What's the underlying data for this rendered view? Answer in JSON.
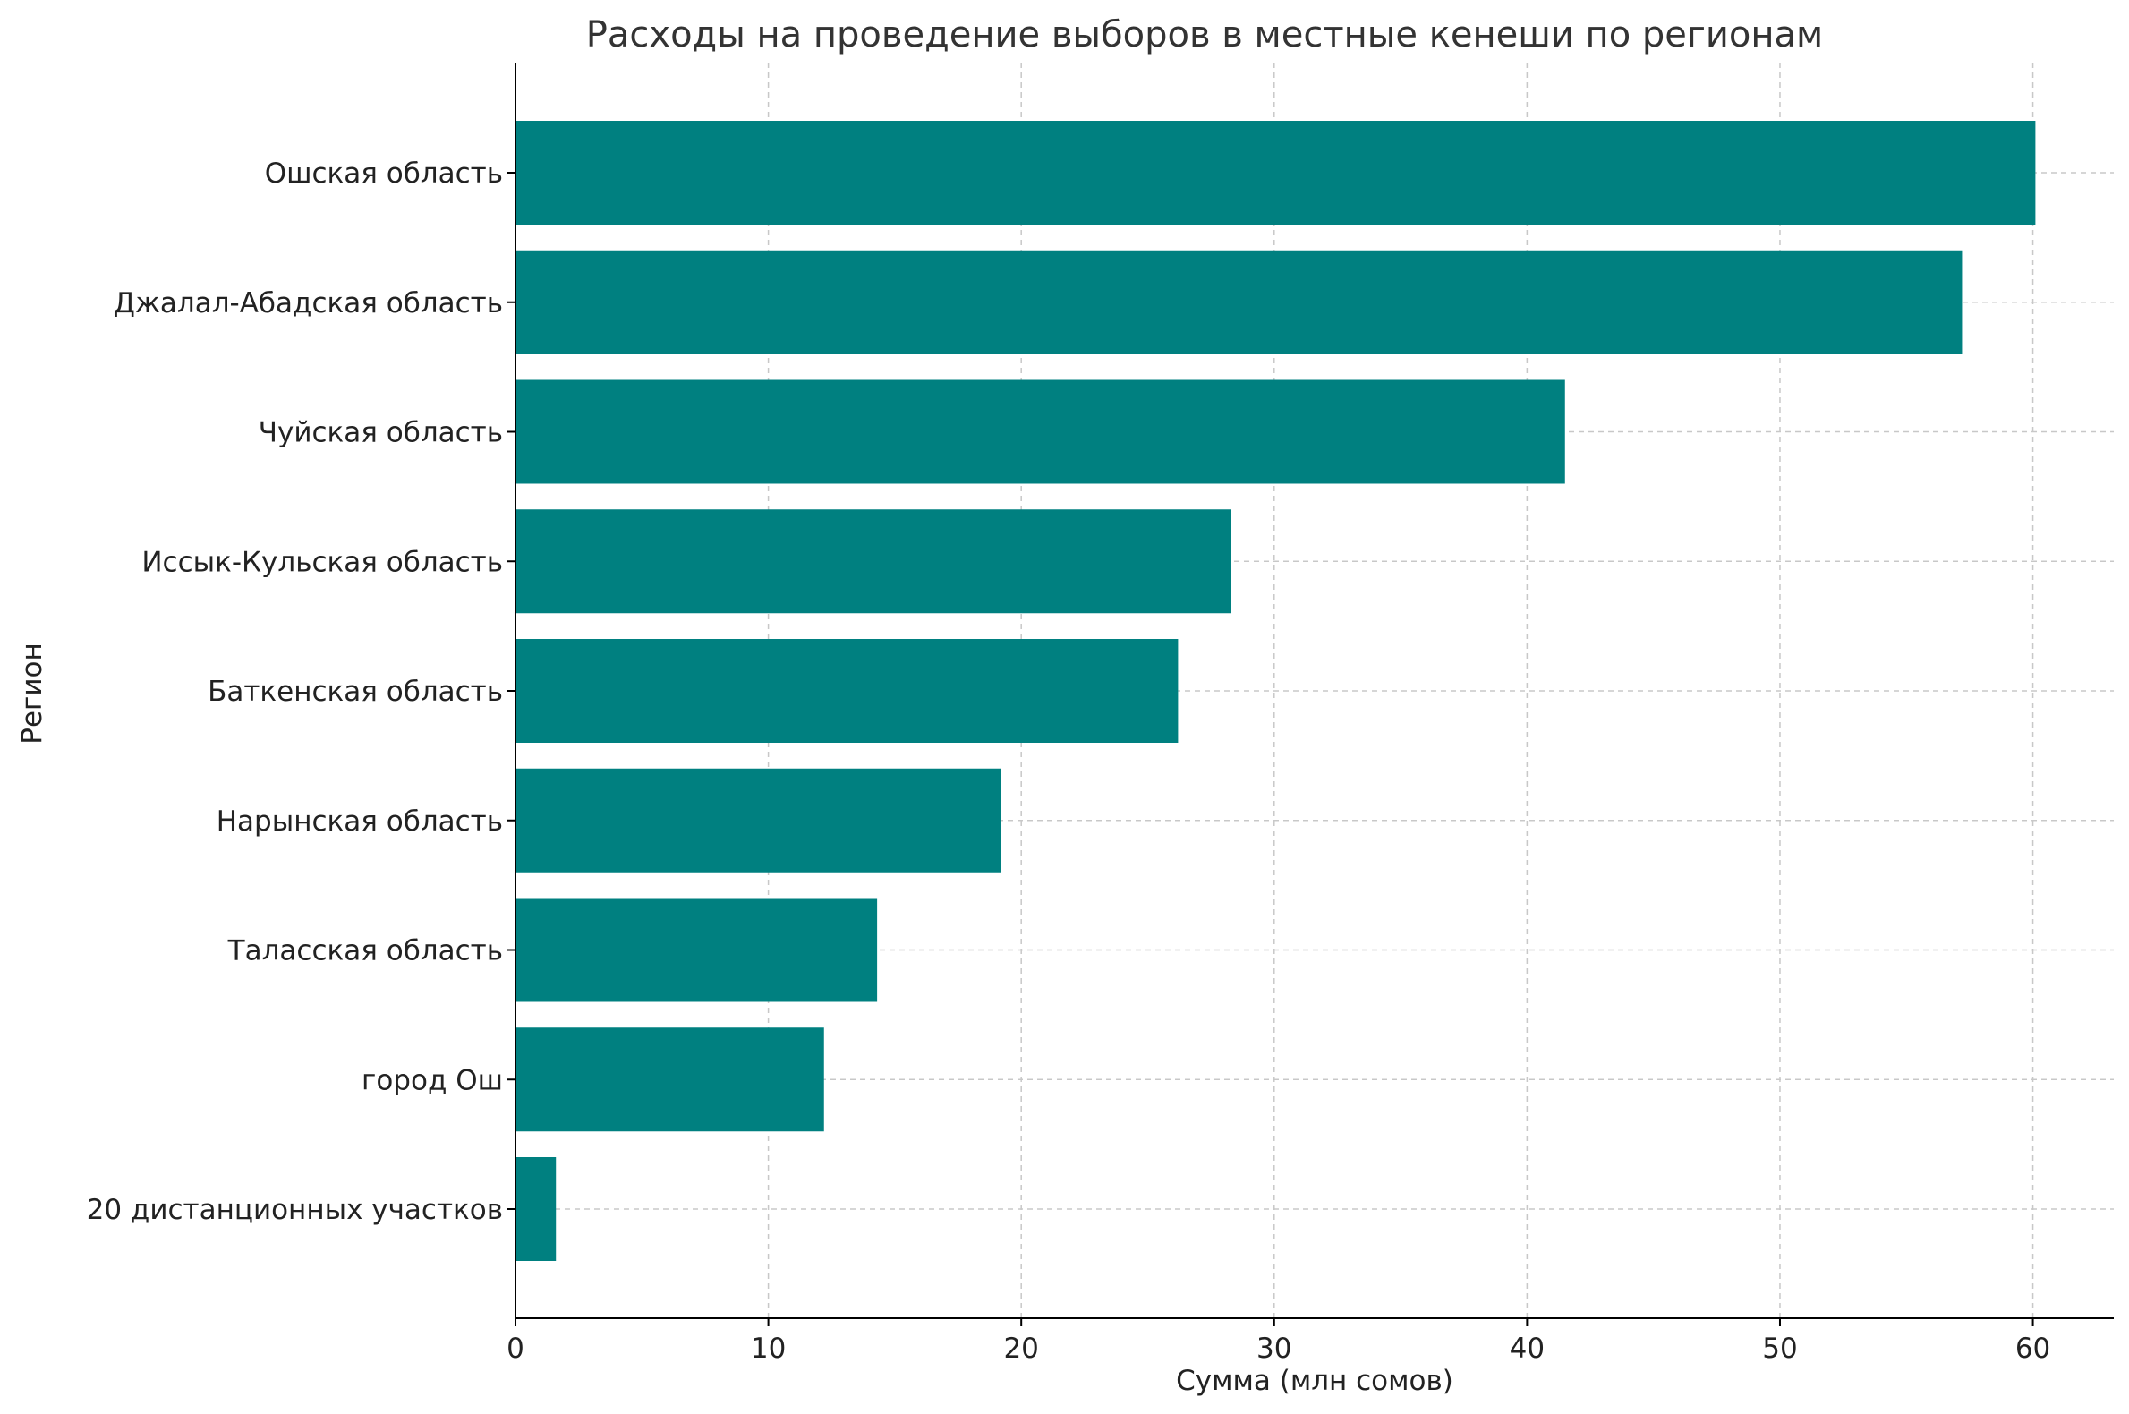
{
  "chart_data": {
    "type": "bar",
    "orientation": "horizontal",
    "title": "Расходы на проведение выборов в местные кенеши по регионам",
    "xlabel": "Сумма (млн сомов)",
    "ylabel": "Регион",
    "categories": [
      "Ошская область",
      "Джалал-Абадская область",
      "Чуйская область",
      "Иссык-Кульская область",
      "Баткенская область",
      "Нарынская область",
      "Таласская область",
      "город Ош",
      "20 дистанционных участков"
    ],
    "values": [
      60.1,
      57.2,
      41.5,
      28.3,
      26.2,
      19.2,
      14.3,
      12.2,
      1.6
    ],
    "xlim": [
      0,
      63.2
    ],
    "xticks": [
      0,
      10,
      20,
      30,
      40,
      50,
      60
    ],
    "grid": true,
    "colors": {
      "bar": "#008080"
    }
  }
}
